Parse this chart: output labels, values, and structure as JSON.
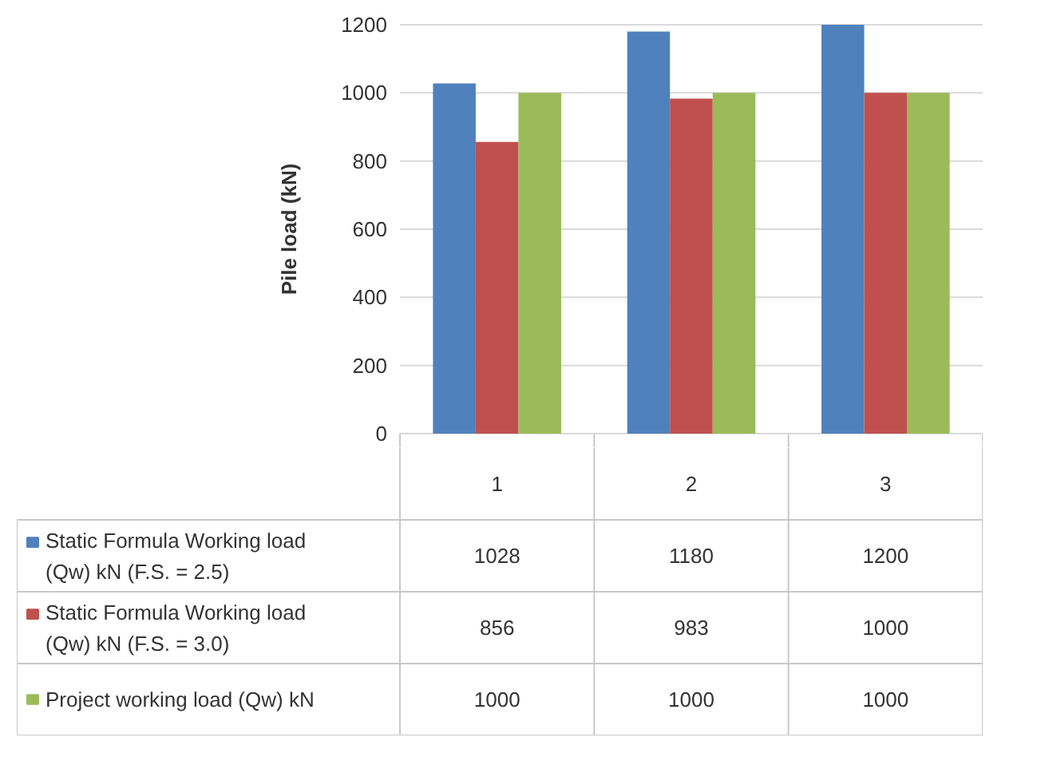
{
  "chart_data": {
    "type": "bar",
    "ylabel": "Pile load (kN)",
    "categories": [
      "1",
      "2",
      "3"
    ],
    "series": [
      {
        "name": "Static Formula  Working load (Qw)  kN (F.S. = 2.5)",
        "color": "#4f81bd",
        "values": [
          1028,
          1180,
          1200
        ]
      },
      {
        "name": "Static Formula  Working load (Qw) kN (F.S. = 3.0)",
        "color": "#c0504d",
        "values": [
          856,
          983,
          1000
        ]
      },
      {
        "name": "Project working load (Qw) kN",
        "color": "#9bbb59",
        "values": [
          1000,
          1000,
          1000
        ]
      }
    ],
    "ylim": [
      0,
      1200
    ],
    "yticks": [
      0,
      200,
      400,
      600,
      800,
      1000,
      1200
    ],
    "grid": "y",
    "legend": "bottom",
    "data_labels": true
  }
}
